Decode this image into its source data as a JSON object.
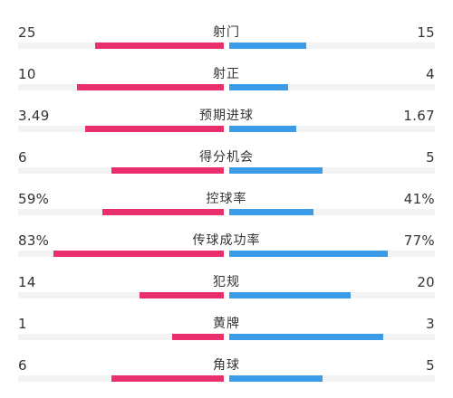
{
  "colors": {
    "home": "#ea2f6d",
    "away": "#3a9be8",
    "track": "#f3f3f3"
  },
  "stats": [
    {
      "label": "射门",
      "home": "25",
      "away": "15",
      "home_ratio": 0.625,
      "away_ratio": 0.375
    },
    {
      "label": "射正",
      "home": "10",
      "away": "4",
      "home_ratio": 0.714,
      "away_ratio": 0.286
    },
    {
      "label": "预期进球",
      "home": "3.49",
      "away": "1.67",
      "home_ratio": 0.676,
      "away_ratio": 0.324
    },
    {
      "label": "得分机会",
      "home": "6",
      "away": "5",
      "home_ratio": 0.545,
      "away_ratio": 0.455
    },
    {
      "label": "控球率",
      "home": "59%",
      "away": "41%",
      "home_ratio": 0.59,
      "away_ratio": 0.41
    },
    {
      "label": "传球成功率",
      "home": "83%",
      "away": "77%",
      "home_ratio": 0.83,
      "away_ratio": 0.77
    },
    {
      "label": "犯规",
      "home": "14",
      "away": "20",
      "home_ratio": 0.41,
      "away_ratio": 0.59
    },
    {
      "label": "黄牌",
      "home": "1",
      "away": "3",
      "home_ratio": 0.25,
      "away_ratio": 0.75
    },
    {
      "label": "角球",
      "home": "6",
      "away": "5",
      "home_ratio": 0.545,
      "away_ratio": 0.455
    }
  ]
}
